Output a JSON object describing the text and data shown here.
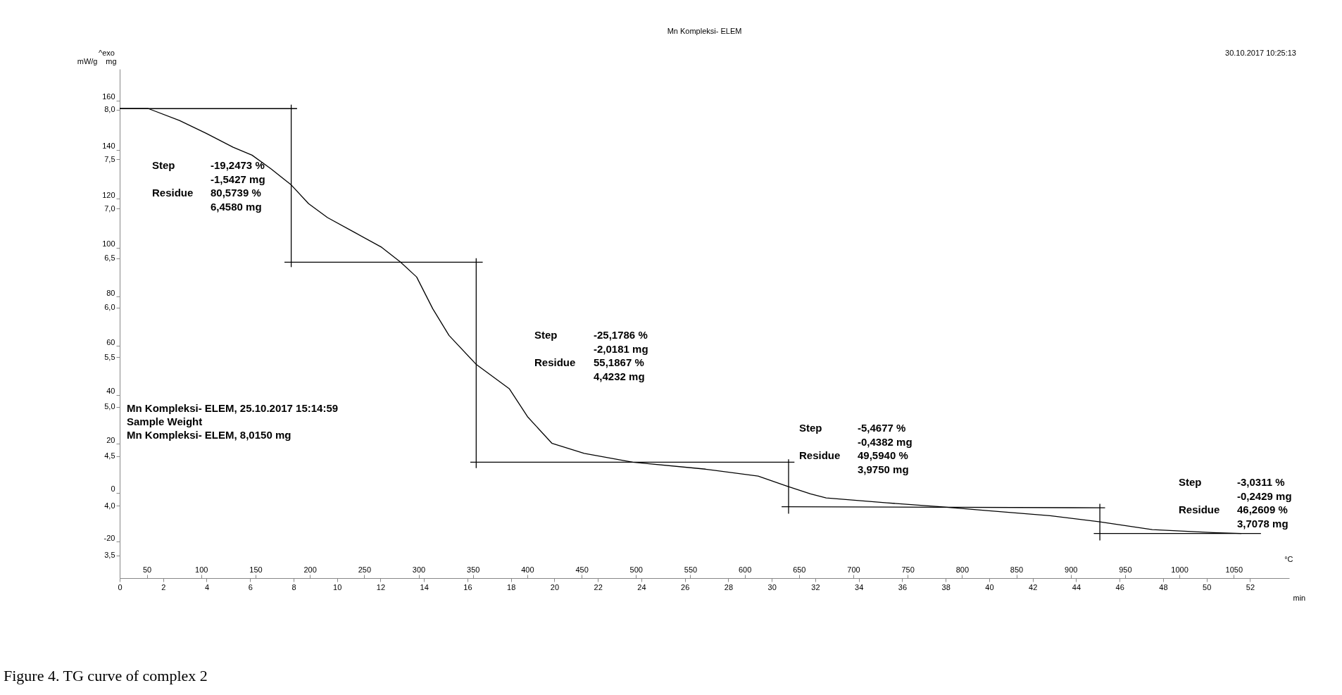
{
  "chart_data": {
    "type": "line",
    "title": "Mn Kompleksi- ELEM",
    "xlabel": "min",
    "ylabel": "mg",
    "y2label": "mW/g",
    "x2label": "°C",
    "xlim": [
      0,
      53.8
    ],
    "xticks": [
      0,
      2,
      4,
      6,
      8,
      10,
      12,
      14,
      16,
      18,
      20,
      22,
      24,
      26,
      28,
      30,
      32,
      34,
      36,
      38,
      40,
      42,
      44,
      46,
      48,
      50,
      52
    ],
    "x2lim": [
      25,
      1101
    ],
    "x2ticks": [
      50,
      100,
      150,
      200,
      250,
      300,
      350,
      400,
      450,
      500,
      550,
      600,
      650,
      700,
      750,
      800,
      850,
      900,
      950,
      1000,
      1050
    ],
    "ylim": [
      3.27,
      8.41
    ],
    "yticks": [
      {
        "value": 3.5,
        "label": "3,5"
      },
      {
        "value": 4.0,
        "label": "4,0"
      },
      {
        "value": 4.5,
        "label": "4,5"
      },
      {
        "value": 5.0,
        "label": "5,0"
      },
      {
        "value": 5.5,
        "label": "5,5"
      },
      {
        "value": 6.0,
        "label": "6,0"
      },
      {
        "value": 6.5,
        "label": "6,5"
      },
      {
        "value": 7.0,
        "label": "7,0"
      },
      {
        "value": 7.5,
        "label": "7,5"
      },
      {
        "value": 8.0,
        "label": "8,0"
      }
    ],
    "y2lim": [
      -34.8,
      172.9
    ],
    "y2ticks": [
      -20,
      0,
      20,
      40,
      60,
      80,
      100,
      120,
      140,
      160
    ],
    "grid": false,
    "line_style": "solid",
    "series": [
      {
        "color": "#000000",
        "x": [
          0,
          1.32,
          2.75,
          3.98,
          5.22,
          6.09,
          6.97,
          7.89,
          8.69,
          9.56,
          10.81,
          12.05,
          12.92,
          13.66,
          14.4,
          15.15,
          16.39,
          17.93,
          18.76,
          19.89,
          21.37,
          23.6,
          26.95,
          29.37,
          30.67,
          31.78,
          32.5,
          35.3,
          37.75,
          40.0,
          42.8,
          45.04,
          47.5,
          50.3,
          51.6
        ],
        "values": [
          8.01,
          8.01,
          7.89,
          7.76,
          7.62,
          7.54,
          7.4,
          7.24,
          7.05,
          6.91,
          6.76,
          6.61,
          6.46,
          6.31,
          5.99,
          5.72,
          5.43,
          5.18,
          4.9,
          4.63,
          4.53,
          4.44,
          4.37,
          4.3,
          4.2,
          4.12,
          4.08,
          4.03,
          3.99,
          3.95,
          3.9,
          3.84,
          3.76,
          3.73,
          3.72
        ]
      },
      {
        "type": "line",
        "color": "#000000",
        "x": [
          0,
          8.16
        ],
        "values": [
          8.01,
          8.01
        ]
      },
      {
        "type": "line",
        "color": "#000000",
        "x": [
          7.89,
          7.89
        ],
        "values": [
          8.05,
          6.41
        ]
      },
      {
        "type": "line",
        "color": "#000000",
        "x": [
          7.58,
          16.7
        ],
        "values": [
          6.46,
          6.46
        ]
      },
      {
        "type": "line",
        "color": "#000000",
        "x": [
          16.4,
          16.4
        ],
        "values": [
          6.5,
          4.38
        ]
      },
      {
        "type": "line",
        "color": "#000000",
        "x": [
          16.13,
          31.04
        ],
        "values": [
          4.44,
          4.44
        ]
      },
      {
        "type": "line",
        "color": "#000000",
        "x": [
          30.77,
          30.77
        ],
        "values": [
          4.47,
          3.92
        ]
      },
      {
        "type": "line",
        "color": "#000000",
        "x": [
          30.45,
          45.33
        ],
        "values": [
          3.99,
          3.98
        ]
      },
      {
        "type": "line",
        "color": "#000000",
        "x": [
          45.09,
          45.09
        ],
        "values": [
          4.02,
          3.65
        ]
      },
      {
        "type": "line",
        "color": "#000000",
        "x": [
          44.81,
          52.5
        ],
        "values": [
          3.72,
          3.72
        ]
      }
    ],
    "annotations": [
      "^exo",
      "30.10.2017 10:25:13",
      "Mn Kompleksi- ELEM, 25.10.2017 15:14:59",
      "Sample Weight",
      "Mn Kompleksi- ELEM, 8,0150 mg",
      "Figure 4. TG curve of complex 2",
      "Step",
      "-19,2473 %",
      "-1,5427 mg",
      "Residue",
      "80,5739 %",
      "6,4580 mg",
      "Step",
      "-25,1786 %",
      "-2,0181 mg",
      "Residue",
      "55,1867 %",
      "4,4232 mg",
      "Step",
      "-5,4677 %",
      "-0,4382 mg",
      "Residue",
      "49,5940 %",
      "3,9750 mg",
      "Step",
      "-3,0311 %",
      "-0,2429 mg",
      "Residue",
      "46,2609 %",
      "3,7078 mg"
    ]
  }
}
